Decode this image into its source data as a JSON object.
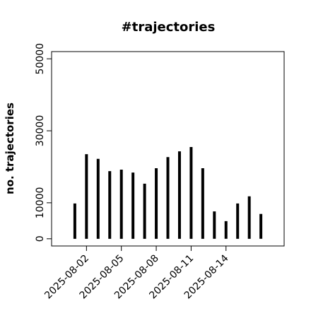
{
  "chart_data": {
    "type": "spike",
    "title": "#trajectories",
    "y_label": "no. trajectories",
    "x": [
      "2025-08-01",
      "2025-08-02",
      "2025-08-03",
      "2025-08-04",
      "2025-08-05",
      "2025-08-06",
      "2025-08-07",
      "2025-08-08",
      "2025-08-09",
      "2025-08-10",
      "2025-08-11",
      "2025-08-12",
      "2025-08-13",
      "2025-08-14",
      "2025-08-15",
      "2025-08-16",
      "2025-08-17"
    ],
    "values": [
      9800,
      23500,
      22200,
      18800,
      19200,
      18400,
      15300,
      19600,
      22700,
      24300,
      25500,
      19600,
      7600,
      4900,
      9800,
      11800,
      6900
    ],
    "color": "#000000",
    "xlim": [
      "2025-07-30",
      "2025-08-19"
    ],
    "xticks": [
      "2025-08-02",
      "2025-08-05",
      "2025-08-08",
      "2025-08-11",
      "2025-08-14"
    ],
    "ylim": [
      -2000,
      52000
    ],
    "yticks": [
      0,
      10000,
      30000,
      50000
    ]
  }
}
